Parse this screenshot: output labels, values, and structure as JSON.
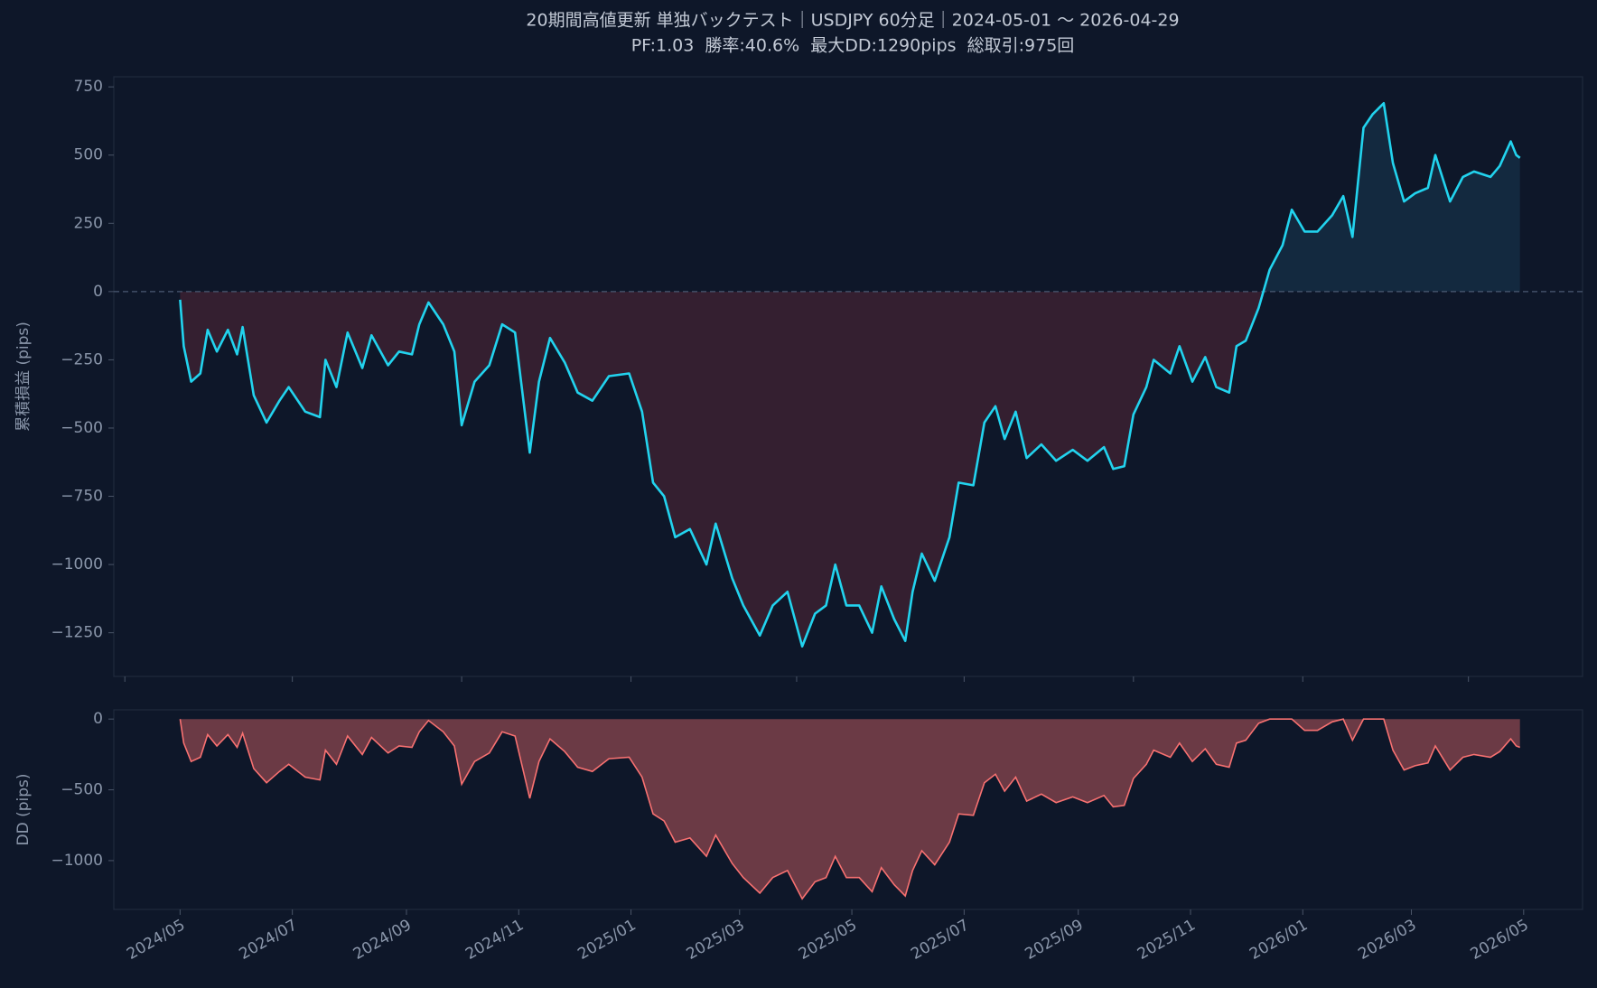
{
  "chart_data": [
    {
      "type": "line",
      "title": "20期間高値更新 単独バックテスト｜USDJPY 60分足｜2024-05-01 〜 2026-04-29",
      "subtitle": "PF:1.03  勝率:40.6%  最大DD:1290pips  総取引:975回",
      "ylabel": "累積損益 (pips)",
      "x": [
        "2024-05-01",
        "2024-05-03",
        "2024-05-07",
        "2024-05-12",
        "2024-05-16",
        "2024-05-21",
        "2024-05-27",
        "2024-06-01",
        "2024-06-04",
        "2024-06-10",
        "2024-06-17",
        "2024-06-24",
        "2024-06-29",
        "2024-07-08",
        "2024-07-16",
        "2024-07-19",
        "2024-07-25",
        "2024-07-31",
        "2024-08-08",
        "2024-08-13",
        "2024-08-22",
        "2024-08-28",
        "2024-09-04",
        "2024-09-08",
        "2024-09-13",
        "2024-09-21",
        "2024-09-27",
        "2024-10-01",
        "2024-10-08",
        "2024-10-16",
        "2024-10-23",
        "2024-10-30",
        "2024-11-07",
        "2024-11-12",
        "2024-11-18",
        "2024-11-26",
        "2024-12-03",
        "2024-12-11",
        "2024-12-20",
        "2024-12-31",
        "2025-01-07",
        "2025-01-13",
        "2025-01-19",
        "2025-01-25",
        "2025-02-02",
        "2025-02-11",
        "2025-02-16",
        "2025-02-25",
        "2025-03-03",
        "2025-03-12",
        "2025-03-19",
        "2025-03-27",
        "2025-04-04",
        "2025-04-11",
        "2025-04-17",
        "2025-04-22",
        "2025-04-28",
        "2025-05-05",
        "2025-05-12",
        "2025-05-17",
        "2025-05-24",
        "2025-05-30",
        "2025-06-03",
        "2025-06-08",
        "2025-06-15",
        "2025-06-23",
        "2025-06-28",
        "2025-07-06",
        "2025-07-12",
        "2025-07-18",
        "2025-07-23",
        "2025-07-29",
        "2025-08-04",
        "2025-08-12",
        "2025-08-20",
        "2025-08-29",
        "2025-09-06",
        "2025-09-15",
        "2025-09-20",
        "2025-09-26",
        "2025-10-01",
        "2025-10-08",
        "2025-10-12",
        "2025-10-21",
        "2025-10-26",
        "2025-11-02",
        "2025-11-09",
        "2025-11-15",
        "2025-11-22",
        "2025-11-26",
        "2025-12-01",
        "2025-12-08",
        "2025-12-14",
        "2025-12-21",
        "2025-12-26",
        "2026-01-02",
        "2026-01-09",
        "2026-01-17",
        "2026-01-23",
        "2026-01-28",
        "2026-02-03",
        "2026-02-08",
        "2026-02-14",
        "2026-02-19",
        "2026-02-25",
        "2026-03-03",
        "2026-03-10",
        "2026-03-14",
        "2026-03-22",
        "2026-03-29",
        "2026-04-04",
        "2026-04-13",
        "2026-04-18",
        "2026-04-24",
        "2026-04-27",
        "2026-04-29"
      ],
      "series": [
        {
          "color": "#22d3ee",
          "values": [
            -30,
            -200,
            -330,
            -300,
            -140,
            -220,
            -140,
            -230,
            -130,
            -380,
            -480,
            -400,
            -350,
            -440,
            -460,
            -250,
            -350,
            -150,
            -280,
            -160,
            -270,
            -220,
            -230,
            -120,
            -40,
            -120,
            -220,
            -490,
            -330,
            -270,
            -120,
            -150,
            -590,
            -330,
            -170,
            -260,
            -370,
            -400,
            -310,
            -300,
            -440,
            -700,
            -750,
            -900,
            -870,
            -1000,
            -850,
            -1050,
            -1150,
            -1260,
            -1150,
            -1100,
            -1300,
            -1180,
            -1150,
            -1000,
            -1150,
            -1150,
            -1250,
            -1080,
            -1200,
            -1280,
            -1100,
            -960,
            -1060,
            -900,
            -700,
            -710,
            -480,
            -420,
            -540,
            -440,
            -610,
            -560,
            -620,
            -580,
            -620,
            -570,
            -650,
            -640,
            -450,
            -350,
            -250,
            -300,
            -200,
            -330,
            -240,
            -350,
            -370,
            -200,
            -180,
            -60,
            80,
            170,
            300,
            220,
            220,
            280,
            350,
            200,
            600,
            650,
            690,
            470,
            330,
            360,
            380,
            500,
            330,
            420,
            440,
            420,
            460,
            550,
            500,
            490
          ]
        }
      ],
      "xlim": [
        "2024-03-26",
        "2026-06-02"
      ],
      "xticks": [
        "2024-04-01",
        "2024-07-01",
        "2024-10-01",
        "2025-01-01",
        "2025-04-01",
        "2025-07-01",
        "2025-10-01",
        "2026-01-01",
        "2026-04-01"
      ],
      "ylim": [
        -1410,
        787
      ],
      "yticks": [
        750,
        500,
        250,
        0,
        {
          "value": -250,
          "label": "−250"
        },
        {
          "value": -500,
          "label": "−500"
        },
        {
          "value": -750,
          "label": "−750"
        },
        {
          "value": -1000,
          "label": "−1000"
        },
        {
          "value": -1250,
          "label": "−1250"
        }
      ]
    },
    {
      "type": "area",
      "ylabel": "DD (pips)",
      "x": [
        "2024-05-01",
        "2024-05-03",
        "2024-05-07",
        "2024-05-12",
        "2024-05-16",
        "2024-05-21",
        "2024-05-27",
        "2024-06-01",
        "2024-06-04",
        "2024-06-10",
        "2024-06-17",
        "2024-06-24",
        "2024-06-29",
        "2024-07-08",
        "2024-07-16",
        "2024-07-19",
        "2024-07-25",
        "2024-07-31",
        "2024-08-08",
        "2024-08-13",
        "2024-08-22",
        "2024-08-28",
        "2024-09-04",
        "2024-09-08",
        "2024-09-13",
        "2024-09-21",
        "2024-09-27",
        "2024-10-01",
        "2024-10-08",
        "2024-10-16",
        "2024-10-23",
        "2024-10-30",
        "2024-11-07",
        "2024-11-12",
        "2024-11-18",
        "2024-11-26",
        "2024-12-03",
        "2024-12-11",
        "2024-12-20",
        "2024-12-31",
        "2025-01-07",
        "2025-01-13",
        "2025-01-19",
        "2025-01-25",
        "2025-02-02",
        "2025-02-11",
        "2025-02-16",
        "2025-02-25",
        "2025-03-03",
        "2025-03-12",
        "2025-03-19",
        "2025-03-27",
        "2025-04-04",
        "2025-04-11",
        "2025-04-17",
        "2025-04-22",
        "2025-04-28",
        "2025-05-05",
        "2025-05-12",
        "2025-05-17",
        "2025-05-24",
        "2025-05-30",
        "2025-06-03",
        "2025-06-08",
        "2025-06-15",
        "2025-06-23",
        "2025-06-28",
        "2025-07-06",
        "2025-07-12",
        "2025-07-18",
        "2025-07-23",
        "2025-07-29",
        "2025-08-04",
        "2025-08-12",
        "2025-08-20",
        "2025-08-29",
        "2025-09-06",
        "2025-09-15",
        "2025-09-20",
        "2025-09-26",
        "2025-10-01",
        "2025-10-08",
        "2025-10-12",
        "2025-10-21",
        "2025-10-26",
        "2025-11-02",
        "2025-11-09",
        "2025-11-15",
        "2025-11-22",
        "2025-11-26",
        "2025-12-01",
        "2025-12-08",
        "2025-12-14",
        "2025-12-21",
        "2025-12-26",
        "2026-01-02",
        "2026-01-09",
        "2026-01-17",
        "2026-01-23",
        "2026-01-28",
        "2026-02-03",
        "2026-02-08",
        "2026-02-14",
        "2026-02-19",
        "2026-02-25",
        "2026-03-03",
        "2026-03-10",
        "2026-03-14",
        "2026-03-22",
        "2026-03-29",
        "2026-04-04",
        "2026-04-13",
        "2026-04-18",
        "2026-04-24",
        "2026-04-27",
        "2026-04-29"
      ],
      "series": [
        {
          "color": "#f87171",
          "values": [
            0,
            -170,
            -300,
            -270,
            -110,
            -190,
            -110,
            -200,
            -100,
            -350,
            -450,
            -370,
            -320,
            -410,
            -430,
            -220,
            -320,
            -120,
            -250,
            -130,
            -240,
            -190,
            -200,
            -90,
            -10,
            -90,
            -190,
            -460,
            -300,
            -240,
            -90,
            -120,
            -560,
            -300,
            -140,
            -230,
            -340,
            -370,
            -280,
            -270,
            -410,
            -670,
            -720,
            -870,
            -840,
            -970,
            -820,
            -1020,
            -1120,
            -1230,
            -1120,
            -1070,
            -1270,
            -1150,
            -1120,
            -970,
            -1120,
            -1120,
            -1220,
            -1050,
            -1170,
            -1250,
            -1070,
            -930,
            -1030,
            -870,
            -670,
            -680,
            -450,
            -390,
            -510,
            -410,
            -580,
            -530,
            -590,
            -550,
            -590,
            -540,
            -620,
            -610,
            -420,
            -320,
            -220,
            -270,
            -170,
            -300,
            -210,
            -320,
            -340,
            -170,
            -150,
            -30,
            0,
            0,
            0,
            -80,
            -80,
            -20,
            0,
            -150,
            0,
            0,
            0,
            -220,
            -360,
            -330,
            -310,
            -190,
            -360,
            -270,
            -250,
            -270,
            -230,
            -140,
            -190,
            -200
          ]
        }
      ],
      "xlim": [
        "2024-03-26",
        "2026-06-02"
      ],
      "xticks": [
        {
          "value": "2024-05-01",
          "label": "2024/05"
        },
        {
          "value": "2024-07-01",
          "label": "2024/07"
        },
        {
          "value": "2024-09-01",
          "label": "2024/09"
        },
        {
          "value": "2024-11-01",
          "label": "2024/11"
        },
        {
          "value": "2025-01-01",
          "label": "2025/01"
        },
        {
          "value": "2025-03-01",
          "label": "2025/03"
        },
        {
          "value": "2025-05-01",
          "label": "2025/05"
        },
        {
          "value": "2025-07-01",
          "label": "2025/07"
        },
        {
          "value": "2025-09-01",
          "label": "2025/09"
        },
        {
          "value": "2025-11-01",
          "label": "2025/11"
        },
        {
          "value": "2026-01-01",
          "label": "2026/01"
        },
        {
          "value": "2026-03-01",
          "label": "2026/03"
        },
        {
          "value": "2026-05-01",
          "label": "2026/05"
        }
      ],
      "ylim": [
        -1345,
        65
      ],
      "yticks": [
        0,
        {
          "value": -500,
          "label": "−500"
        },
        {
          "value": -1000,
          "label": "−1000"
        }
      ]
    }
  ]
}
